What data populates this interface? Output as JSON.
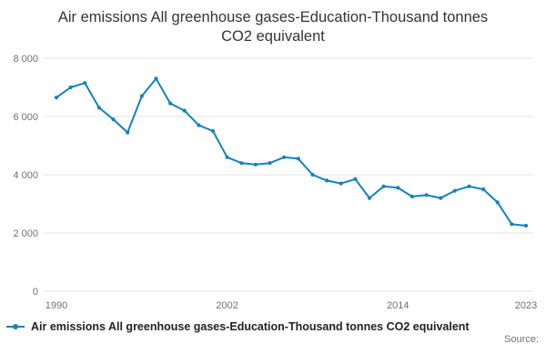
{
  "chart_data": {
    "type": "line",
    "title": "Air emissions All greenhouse gases-Education-Thousand tonnes CO2 equivalent",
    "xlabel": "",
    "ylabel": "",
    "x": [
      1990,
      1991,
      1992,
      1993,
      1994,
      1995,
      1996,
      1997,
      1998,
      1999,
      2000,
      2001,
      2002,
      2003,
      2004,
      2005,
      2006,
      2007,
      2008,
      2009,
      2010,
      2011,
      2012,
      2013,
      2014,
      2015,
      2016,
      2017,
      2018,
      2019,
      2020,
      2021,
      2022,
      2023
    ],
    "series": [
      {
        "name": "Air emissions All greenhouse gases-Education-Thousand tonnes CO2 equivalent",
        "values": [
          6650,
          7000,
          7150,
          6300,
          5900,
          5450,
          6700,
          7300,
          6450,
          6200,
          5700,
          5500,
          4600,
          4400,
          4350,
          4400,
          4600,
          4550,
          4000,
          3800,
          3700,
          3850,
          3200,
          3600,
          3550,
          3250,
          3300,
          3200,
          3450,
          3600,
          3500,
          3050,
          2300,
          2250
        ]
      }
    ],
    "ylim": [
      0,
      8000
    ],
    "yticks": [
      {
        "value": 0,
        "label": "0"
      },
      {
        "value": 2000,
        "label": "2 000"
      },
      {
        "value": 4000,
        "label": "4 000"
      },
      {
        "value": 6000,
        "label": "6 000"
      },
      {
        "value": 8000,
        "label": "8 000"
      }
    ],
    "xticks": [
      {
        "value": 1990,
        "label": "1990"
      },
      {
        "value": 2002,
        "label": "2002"
      },
      {
        "value": 2014,
        "label": "2014"
      },
      {
        "value": 2023,
        "label": "2023"
      }
    ],
    "grid": true,
    "legend_position": "bottom",
    "line_color": "#1581bd",
    "grid_color": "#e3e3e3",
    "axis_text_color": "#707070"
  },
  "legend": {
    "label": "Air emissions All greenhouse gases-Education-Thousand tonnes CO2 equivalent"
  },
  "footer": {
    "source": "Source:"
  }
}
